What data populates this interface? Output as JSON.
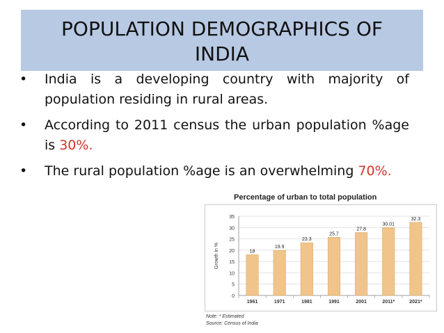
{
  "slide": {
    "title_line1": "POPULATION DEMOGRAPHICS OF",
    "title_line2": "INDIA",
    "bullet_glyph": "•",
    "bullets": [
      {
        "text": "India is a developing country with majority of population residing in rural areas."
      },
      {
        "text": "According to 2011 census the urban population %age is ",
        "highlight": "30%."
      },
      {
        "text": "The rural population %age is an overwhelming ",
        "highlight": "70%."
      }
    ],
    "accent_color": "#d0342c"
  },
  "chart_data": {
    "type": "bar",
    "title": "Percentage of urban to total population",
    "ylabel": "Growth in %",
    "xlabel": "",
    "categories": [
      "1961",
      "1971",
      "1981",
      "1991",
      "2001",
      "2011*",
      "2021*"
    ],
    "values": [
      18,
      19.9,
      23.3,
      25.7,
      27.8,
      30.01,
      32.3
    ],
    "value_labels": [
      "18",
      "19.9",
      "23.3",
      "25.7",
      "27.8",
      "30.01",
      "32.3"
    ],
    "yticks": [
      "0",
      "5",
      "10",
      "15",
      "20",
      "25",
      "30",
      "35"
    ],
    "ylim": [
      0,
      35
    ],
    "grid": true,
    "bar_color": "#f0c48a",
    "note": "Note: * Estimated",
    "source": "Source: Census of India"
  }
}
